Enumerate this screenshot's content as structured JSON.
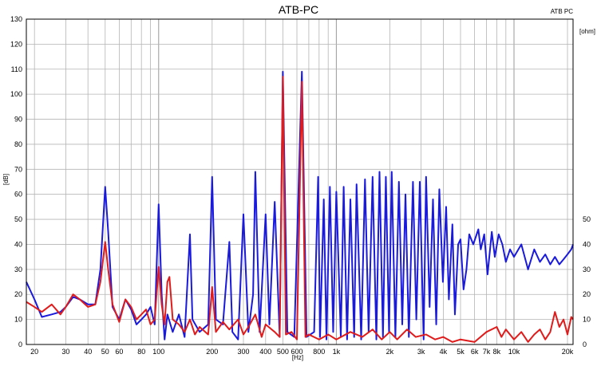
{
  "chart_data": {
    "type": "line",
    "title": "ATB-PC",
    "corner_label": "ATB PC",
    "xlabel": "[Hz]",
    "ylabel_left": "[dB]",
    "ylabel_right": "[ohm]",
    "x_scale": "log",
    "xlim": [
      18,
      21500
    ],
    "ylim_left": [
      0,
      130
    ],
    "ylim_right": [
      0,
      130
    ],
    "grid": true,
    "x_ticks": [
      {
        "v": 20,
        "label": "20"
      },
      {
        "v": 30,
        "label": "30"
      },
      {
        "v": 40,
        "label": "40"
      },
      {
        "v": 50,
        "label": "50"
      },
      {
        "v": 60,
        "label": "60"
      },
      {
        "v": 80,
        "label": "80"
      },
      {
        "v": 100,
        "label": "100"
      },
      {
        "v": 200,
        "label": "200"
      },
      {
        "v": 300,
        "label": "300"
      },
      {
        "v": 400,
        "label": "400"
      },
      {
        "v": 500,
        "label": "500"
      },
      {
        "v": 600,
        "label": "600"
      },
      {
        "v": 800,
        "label": "800"
      },
      {
        "v": 1000,
        "label": "1k"
      },
      {
        "v": 2000,
        "label": "2k"
      },
      {
        "v": 3000,
        "label": "3k"
      },
      {
        "v": 4000,
        "label": "4k"
      },
      {
        "v": 5000,
        "label": "5k"
      },
      {
        "v": 6000,
        "label": "6k"
      },
      {
        "v": 7000,
        "label": "7k"
      },
      {
        "v": 8000,
        "label": "8k"
      },
      {
        "v": 10000,
        "label": "10k"
      },
      {
        "v": 20000,
        "label": "20k"
      }
    ],
    "y_ticks_left": [
      0,
      10,
      20,
      30,
      40,
      50,
      60,
      70,
      80,
      90,
      100,
      110,
      120,
      130
    ],
    "y_ticks_right": [
      0,
      10,
      20,
      30,
      40,
      50
    ],
    "series": [
      {
        "color": "#1a1adc",
        "points": [
          [
            18,
            25
          ],
          [
            20,
            18
          ],
          [
            22,
            11
          ],
          [
            25,
            12
          ],
          [
            28,
            13
          ],
          [
            30,
            15
          ],
          [
            33,
            19
          ],
          [
            36,
            18
          ],
          [
            40,
            16
          ],
          [
            44,
            16
          ],
          [
            47,
            30
          ],
          [
            50,
            63
          ],
          [
            52,
            45
          ],
          [
            55,
            15
          ],
          [
            60,
            10
          ],
          [
            65,
            18
          ],
          [
            70,
            14
          ],
          [
            75,
            8
          ],
          [
            80,
            10
          ],
          [
            85,
            12
          ],
          [
            90,
            15
          ],
          [
            95,
            8
          ],
          [
            100,
            56
          ],
          [
            104,
            20
          ],
          [
            108,
            2
          ],
          [
            112,
            12
          ],
          [
            120,
            5
          ],
          [
            130,
            12
          ],
          [
            140,
            3
          ],
          [
            150,
            44
          ],
          [
            155,
            10
          ],
          [
            170,
            5
          ],
          [
            190,
            8
          ],
          [
            200,
            67
          ],
          [
            210,
            10
          ],
          [
            230,
            8
          ],
          [
            250,
            41
          ],
          [
            260,
            5
          ],
          [
            280,
            2
          ],
          [
            300,
            52
          ],
          [
            320,
            5
          ],
          [
            340,
            20
          ],
          [
            350,
            69
          ],
          [
            370,
            5
          ],
          [
            400,
            52
          ],
          [
            420,
            8
          ],
          [
            450,
            57
          ],
          [
            480,
            3
          ],
          [
            500,
            109
          ],
          [
            530,
            5
          ],
          [
            580,
            3
          ],
          [
            640,
            109
          ],
          [
            680,
            3
          ],
          [
            750,
            5
          ],
          [
            790,
            67
          ],
          [
            810,
            3
          ],
          [
            850,
            58
          ],
          [
            880,
            2
          ],
          [
            920,
            63
          ],
          [
            960,
            5
          ],
          [
            1000,
            61
          ],
          [
            1060,
            3
          ],
          [
            1100,
            63
          ],
          [
            1150,
            2
          ],
          [
            1200,
            58
          ],
          [
            1260,
            3
          ],
          [
            1300,
            64
          ],
          [
            1380,
            2
          ],
          [
            1450,
            66
          ],
          [
            1520,
            5
          ],
          [
            1600,
            67
          ],
          [
            1680,
            2
          ],
          [
            1750,
            69
          ],
          [
            1830,
            3
          ],
          [
            1900,
            67
          ],
          [
            1980,
            5
          ],
          [
            2050,
            69
          ],
          [
            2150,
            3
          ],
          [
            2250,
            65
          ],
          [
            2350,
            8
          ],
          [
            2450,
            60
          ],
          [
            2560,
            3
          ],
          [
            2700,
            65
          ],
          [
            2820,
            10
          ],
          [
            2950,
            65
          ],
          [
            3100,
            2
          ],
          [
            3200,
            67
          ],
          [
            3350,
            15
          ],
          [
            3500,
            58
          ],
          [
            3650,
            8
          ],
          [
            3800,
            62
          ],
          [
            3980,
            25
          ],
          [
            4150,
            55
          ],
          [
            4300,
            18
          ],
          [
            4500,
            48
          ],
          [
            4650,
            12
          ],
          [
            4850,
            40
          ],
          [
            5000,
            42
          ],
          [
            5200,
            22
          ],
          [
            5400,
            30
          ],
          [
            5600,
            44
          ],
          [
            5900,
            40
          ],
          [
            6300,
            46
          ],
          [
            6500,
            38
          ],
          [
            6800,
            44
          ],
          [
            7100,
            28
          ],
          [
            7500,
            45
          ],
          [
            7800,
            35
          ],
          [
            8200,
            44
          ],
          [
            8600,
            40
          ],
          [
            9000,
            33
          ],
          [
            9500,
            38
          ],
          [
            10000,
            35
          ],
          [
            11000,
            40
          ],
          [
            12000,
            30
          ],
          [
            13000,
            38
          ],
          [
            14000,
            33
          ],
          [
            15000,
            36
          ],
          [
            16000,
            32
          ],
          [
            17000,
            35
          ],
          [
            18000,
            32
          ],
          [
            19000,
            34
          ],
          [
            20000,
            36
          ],
          [
            21000,
            38
          ],
          [
            21500,
            40
          ]
        ]
      },
      {
        "color": "#e01b1b",
        "points": [
          [
            18,
            17
          ],
          [
            20,
            15
          ],
          [
            22,
            13
          ],
          [
            25,
            16
          ],
          [
            28,
            12
          ],
          [
            30,
            15
          ],
          [
            33,
            20
          ],
          [
            36,
            18
          ],
          [
            40,
            15
          ],
          [
            44,
            16
          ],
          [
            47,
            25
          ],
          [
            50,
            41
          ],
          [
            52,
            30
          ],
          [
            55,
            16
          ],
          [
            60,
            9
          ],
          [
            65,
            18
          ],
          [
            70,
            15
          ],
          [
            75,
            10
          ],
          [
            80,
            12
          ],
          [
            85,
            14
          ],
          [
            90,
            8
          ],
          [
            95,
            10
          ],
          [
            100,
            31
          ],
          [
            104,
            16
          ],
          [
            108,
            8
          ],
          [
            112,
            25
          ],
          [
            115,
            27
          ],
          [
            120,
            10
          ],
          [
            130,
            8
          ],
          [
            140,
            5
          ],
          [
            150,
            10
          ],
          [
            160,
            4
          ],
          [
            170,
            7
          ],
          [
            190,
            4
          ],
          [
            200,
            23
          ],
          [
            210,
            5
          ],
          [
            230,
            9
          ],
          [
            250,
            6
          ],
          [
            280,
            10
          ],
          [
            300,
            4
          ],
          [
            320,
            7
          ],
          [
            350,
            12
          ],
          [
            380,
            3
          ],
          [
            400,
            8
          ],
          [
            450,
            5
          ],
          [
            480,
            3
          ],
          [
            500,
            107
          ],
          [
            520,
            4
          ],
          [
            560,
            5
          ],
          [
            600,
            2
          ],
          [
            640,
            105
          ],
          [
            670,
            3
          ],
          [
            700,
            4
          ],
          [
            800,
            2
          ],
          [
            900,
            4
          ],
          [
            1000,
            2
          ],
          [
            1200,
            5
          ],
          [
            1400,
            3
          ],
          [
            1600,
            6
          ],
          [
            1800,
            2
          ],
          [
            2000,
            5
          ],
          [
            2200,
            2
          ],
          [
            2500,
            6
          ],
          [
            2800,
            3
          ],
          [
            3200,
            4
          ],
          [
            3600,
            2
          ],
          [
            4000,
            3
          ],
          [
            4500,
            1
          ],
          [
            5000,
            2
          ],
          [
            6000,
            1
          ],
          [
            7000,
            5
          ],
          [
            8000,
            7
          ],
          [
            8500,
            3
          ],
          [
            9000,
            6
          ],
          [
            10000,
            2
          ],
          [
            11000,
            5
          ],
          [
            12000,
            1
          ],
          [
            13000,
            4
          ],
          [
            14000,
            6
          ],
          [
            15000,
            2
          ],
          [
            16000,
            5
          ],
          [
            17000,
            13
          ],
          [
            18000,
            7
          ],
          [
            19000,
            10
          ],
          [
            20000,
            4
          ],
          [
            21000,
            11
          ],
          [
            21500,
            10
          ]
        ]
      }
    ]
  }
}
